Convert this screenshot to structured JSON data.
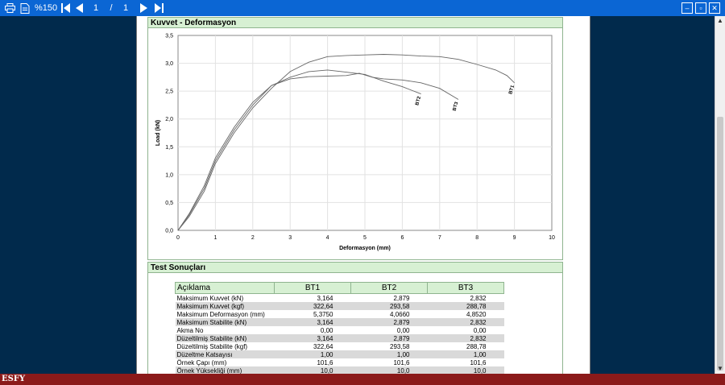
{
  "toolbar": {
    "zoom": "%150",
    "page_current": "1",
    "page_sep": "/",
    "page_total": "1"
  },
  "chart_section": {
    "title": "Kuvvet - Deformasyon"
  },
  "results_section": {
    "title": "Test Sonuçları"
  },
  "chart_data": {
    "type": "line",
    "title": "",
    "xlabel": "Deformasyon (mm)",
    "ylabel": "Load (kN)",
    "xlim": [
      0,
      10
    ],
    "ylim": [
      0,
      3.5
    ],
    "x_ticks": [
      "0",
      "1",
      "2",
      "3",
      "4",
      "5",
      "6",
      "7",
      "8",
      "9",
      "10"
    ],
    "y_ticks": [
      "0,0",
      "0,5",
      "1,0",
      "1,5",
      "2,0",
      "2,5",
      "3,0",
      "3,5"
    ],
    "grid": true,
    "series": [
      {
        "name": "BT1",
        "points": [
          [
            0,
            0
          ],
          [
            0.3,
            0.25
          ],
          [
            0.7,
            0.7
          ],
          [
            1,
            1.2
          ],
          [
            1.5,
            1.75
          ],
          [
            2,
            2.2
          ],
          [
            2.5,
            2.55
          ],
          [
            3,
            2.85
          ],
          [
            3.5,
            3.02
          ],
          [
            4,
            3.12
          ],
          [
            4.5,
            3.14
          ],
          [
            5,
            3.15
          ],
          [
            5.5,
            3.16
          ],
          [
            6,
            3.15
          ],
          [
            6.5,
            3.13
          ],
          [
            7,
            3.12
          ],
          [
            7.5,
            3.07
          ],
          [
            8,
            2.98
          ],
          [
            8.5,
            2.88
          ],
          [
            8.8,
            2.78
          ],
          [
            9,
            2.65
          ]
        ]
      },
      {
        "name": "BT2",
        "points": [
          [
            0,
            0
          ],
          [
            0.3,
            0.3
          ],
          [
            0.7,
            0.8
          ],
          [
            1,
            1.3
          ],
          [
            1.5,
            1.85
          ],
          [
            2,
            2.3
          ],
          [
            2.5,
            2.6
          ],
          [
            3,
            2.75
          ],
          [
            3.5,
            2.85
          ],
          [
            4,
            2.88
          ],
          [
            4.5,
            2.84
          ],
          [
            5,
            2.8
          ],
          [
            5.5,
            2.68
          ],
          [
            6,
            2.58
          ],
          [
            6.5,
            2.45
          ]
        ]
      },
      {
        "name": "BT3",
        "points": [
          [
            0,
            0
          ],
          [
            0.3,
            0.28
          ],
          [
            0.7,
            0.75
          ],
          [
            1,
            1.25
          ],
          [
            1.5,
            1.8
          ],
          [
            2,
            2.25
          ],
          [
            2.5,
            2.6
          ],
          [
            3,
            2.72
          ],
          [
            3.5,
            2.76
          ],
          [
            4,
            2.77
          ],
          [
            4.5,
            2.78
          ],
          [
            4.85,
            2.82
          ],
          [
            5.2,
            2.75
          ],
          [
            5.5,
            2.72
          ],
          [
            6,
            2.7
          ],
          [
            6.5,
            2.65
          ],
          [
            7,
            2.55
          ],
          [
            7.5,
            2.35
          ]
        ]
      }
    ]
  },
  "table": {
    "headers": [
      "Açıklama",
      "BT1",
      "BT2",
      "BT3"
    ],
    "rows": [
      [
        "Maksimum Kuvvet (kN)",
        "3,164",
        "2,879",
        "2,832"
      ],
      [
        "Maksimum Kuvvet (kgf)",
        "322,64",
        "293,58",
        "288,78"
      ],
      [
        "Maksimum Deformasyon (mm)",
        "5,3750",
        "4,0660",
        "4,8520"
      ],
      [
        "Maksimum Stabilite (kN)",
        "3,164",
        "2,879",
        "2,832"
      ],
      [
        "Akma No",
        "0,00",
        "0,00",
        "0,00"
      ],
      [
        "Düzeltilmiş Stabilite (kN)",
        "3,164",
        "2,879",
        "2,832"
      ],
      [
        "Düzeltilmiş Stabilite (kgf)",
        "322,64",
        "293,58",
        "288,78"
      ],
      [
        "Düzeltme Katsayısı",
        "1,00",
        "1,00",
        "1,00"
      ],
      [
        "Örnek Çapı (mm)",
        "101,6",
        "101,6",
        "101,6"
      ],
      [
        "Örnek Yüksekliği (mm)",
        "10,0",
        "10,0",
        "10,0"
      ]
    ]
  },
  "footer": {
    "brand": "ESFY"
  }
}
